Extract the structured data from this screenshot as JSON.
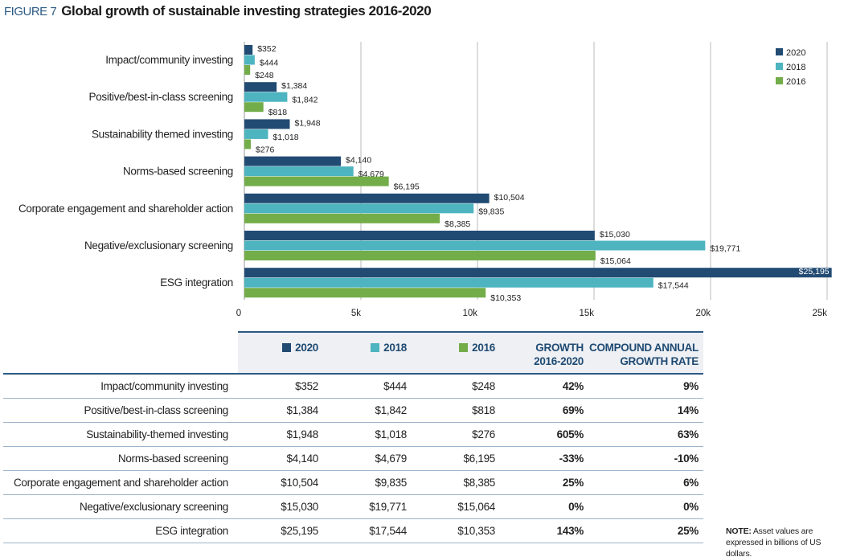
{
  "figure_label": "FIGURE 7",
  "title": "Global growth of sustainable investing strategies 2016-2020",
  "colors": {
    "2020": "#224b73",
    "2018": "#4db4c0",
    "2016": "#73ad4a",
    "title": "#2b5a84"
  },
  "chart_data": {
    "type": "bar",
    "orientation": "horizontal",
    "title": "Global growth of sustainable investing strategies 2016-2020",
    "categories": [
      "Impact/community investing",
      "Positive/best-in-class screening",
      "Sustainability themed investing",
      "Norms-based screening",
      "Corporate engagement and shareholder action",
      "Negative/exclusionary screening",
      "ESG integration"
    ],
    "series": [
      {
        "name": "2020",
        "values": [
          352,
          1384,
          1948,
          4140,
          10504,
          15030,
          25195
        ],
        "labels": [
          "$352",
          "$1,384",
          "$1,948",
          "$4,140",
          "$10,504",
          "$15,030",
          "$25,195"
        ]
      },
      {
        "name": "2018",
        "values": [
          444,
          1842,
          1018,
          4679,
          9835,
          19771,
          17544
        ],
        "labels": [
          "$444",
          "$1,842",
          "$1,018",
          "$4,679",
          "$9,835",
          "$19,771",
          "$17,544"
        ]
      },
      {
        "name": "2016",
        "values": [
          248,
          818,
          276,
          6195,
          8385,
          15064,
          10353
        ],
        "labels": [
          "$248",
          "$818",
          "$276",
          "$6,195",
          "$8,385",
          "$15,064",
          "$10,353"
        ]
      }
    ],
    "xlim": [
      0,
      25000
    ],
    "ticks": [
      0,
      5000,
      10000,
      15000,
      20000,
      25000
    ],
    "tick_labels": [
      "0",
      "5k",
      "10k",
      "15k",
      "20k",
      "25k"
    ],
    "grid": "vertical",
    "legend": "top-right"
  },
  "table": {
    "headers": [
      "2020",
      "2018",
      "2016",
      "GROWTH 2016-2020",
      "COMPOUND ANNUAL GROWTH RATE"
    ],
    "rows": [
      [
        "Impact/community investing",
        "$352",
        "$444",
        "$248",
        "42%",
        "9%"
      ],
      [
        "Positive/best-in-class screening",
        "$1,384",
        "$1,842",
        "$818",
        "69%",
        "14%"
      ],
      [
        "Sustainability-themed investing",
        "$1,948",
        "$1,018",
        "$276",
        "605%",
        "63%"
      ],
      [
        "Norms-based screening",
        "$4,140",
        "$4,679",
        "$6,195",
        "-33%",
        "-10%"
      ],
      [
        "Corporate engagement and shareholder action",
        "$10,504",
        "$9,835",
        "$8,385",
        "25%",
        "6%"
      ],
      [
        "Negative/exclusionary screening",
        "$15,030",
        "$19,771",
        "$15,064",
        "0%",
        "0%"
      ],
      [
        "ESG integration",
        "$25,195",
        "$17,544",
        "$10,353",
        "143%",
        "25%"
      ]
    ]
  },
  "note": {
    "label": "NOTE:",
    "text": "Asset values are expressed in billions of US dollars."
  }
}
